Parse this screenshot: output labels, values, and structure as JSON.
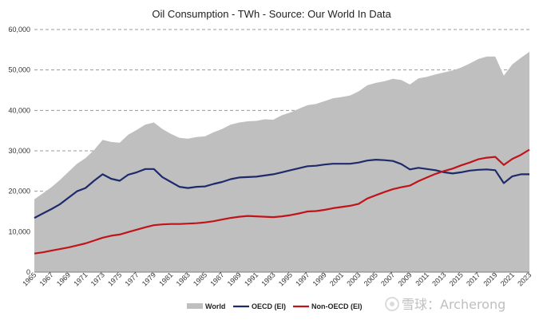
{
  "chart_data": {
    "type": "area",
    "title": "Oil Consumption  - TWh - Source: Our World In Data",
    "xlabel": "",
    "ylabel": "",
    "xlim": [
      1965,
      2023
    ],
    "ylim": [
      0,
      60000
    ],
    "y_ticks": [
      0,
      10000,
      20000,
      30000,
      40000,
      50000,
      60000
    ],
    "y_tick_labels": [
      "0",
      "10,000",
      "20,000",
      "30,000",
      "40,000",
      "50,000",
      "60,000"
    ],
    "x_ticks": [
      1965,
      1967,
      1969,
      1971,
      1973,
      1975,
      1977,
      1979,
      1981,
      1983,
      1985,
      1987,
      1989,
      1991,
      1993,
      1995,
      1997,
      1999,
      2001,
      2003,
      2005,
      2007,
      2009,
      2011,
      2013,
      2015,
      2017,
      2019,
      2021,
      2023
    ],
    "grid": "horizontal dashed",
    "legend_position": "bottom",
    "x": [
      1965,
      1966,
      1967,
      1968,
      1969,
      1970,
      1971,
      1972,
      1973,
      1974,
      1975,
      1976,
      1977,
      1978,
      1979,
      1980,
      1981,
      1982,
      1983,
      1984,
      1985,
      1986,
      1987,
      1988,
      1989,
      1990,
      1991,
      1992,
      1993,
      1994,
      1995,
      1996,
      1997,
      1998,
      1999,
      2000,
      2001,
      2002,
      2003,
      2004,
      2005,
      2006,
      2007,
      2008,
      2009,
      2010,
      2011,
      2012,
      2013,
      2014,
      2015,
      2016,
      2017,
      2018,
      2019,
      2020,
      2021,
      2022,
      2023
    ],
    "series": [
      {
        "name": "World",
        "style": "area",
        "color": "#bfbfbf",
        "values": [
          18000,
          19500,
          21000,
          22800,
          24800,
          26800,
          28200,
          30200,
          32700,
          32200,
          32000,
          34000,
          35200,
          36500,
          37000,
          35400,
          34200,
          33200,
          33000,
          33400,
          33600,
          34600,
          35400,
          36500,
          37000,
          37300,
          37400,
          37800,
          37700,
          38800,
          39500,
          40400,
          41300,
          41600,
          42300,
          43000,
          43300,
          43700,
          44700,
          46200,
          46800,
          47200,
          47800,
          47500,
          46400,
          47900,
          48300,
          48900,
          49400,
          49900,
          50600,
          51600,
          52700,
          53300,
          53300,
          48600,
          51400,
          53000,
          54500
        ]
      },
      {
        "name": "OECD (EI)",
        "style": "line",
        "color": "#1f2a6b",
        "values": [
          13400,
          14500,
          15600,
          16800,
          18400,
          20000,
          20800,
          22600,
          24200,
          23100,
          22600,
          24100,
          24700,
          25500,
          25500,
          23500,
          22300,
          21100,
          20800,
          21100,
          21200,
          21800,
          22300,
          23000,
          23400,
          23500,
          23600,
          23900,
          24200,
          24700,
          25200,
          25700,
          26200,
          26300,
          26600,
          26800,
          26800,
          26800,
          27100,
          27600,
          27800,
          27700,
          27500,
          26700,
          25400,
          25800,
          25500,
          25200,
          24700,
          24400,
          24700,
          25100,
          25300,
          25400,
          25200,
          22000,
          23700,
          24200,
          24200
        ]
      },
      {
        "name": "Non-OECD (EI)",
        "style": "line",
        "color": "#c0141a",
        "values": [
          4600,
          4900,
          5300,
          5700,
          6100,
          6600,
          7100,
          7800,
          8500,
          9000,
          9300,
          9900,
          10500,
          11100,
          11600,
          11800,
          11900,
          11900,
          12000,
          12100,
          12300,
          12600,
          13000,
          13400,
          13700,
          13900,
          13800,
          13700,
          13600,
          13800,
          14100,
          14500,
          15000,
          15100,
          15400,
          15800,
          16100,
          16400,
          16900,
          18200,
          19000,
          19800,
          20500,
          21000,
          21400,
          22500,
          23400,
          24300,
          25000,
          25600,
          26400,
          27100,
          27900,
          28300,
          28500,
          26500,
          28000,
          29000,
          30300
        ]
      }
    ],
    "legend": [
      {
        "label": "World",
        "symbol": "patch",
        "color": "#bfbfbf"
      },
      {
        "label": "OECD (EI)",
        "symbol": "line",
        "color": "#1f2a6b"
      },
      {
        "label": "Non-OECD (EI)",
        "symbol": "line",
        "color": "#c0141a"
      }
    ]
  },
  "watermark": {
    "text": "雪球：Archerong",
    "icon": "snowball-logo-icon"
  }
}
